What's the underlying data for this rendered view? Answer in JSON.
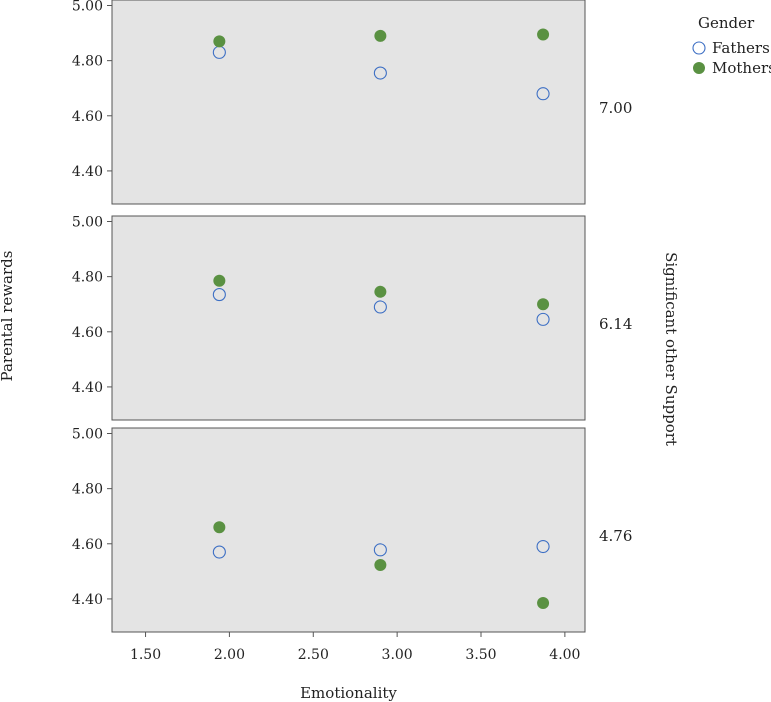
{
  "chart_data": {
    "type": "scatter",
    "xlabel": "Emotionality",
    "ylabel": "Parental rewards",
    "facet_label": "Significant other Support",
    "xlim": [
      1.3,
      4.12
    ],
    "ylim": [
      4.28,
      5.02
    ],
    "x_ticks": [
      "1.50",
      "2.00",
      "2.50",
      "3.00",
      "3.50",
      "4.00"
    ],
    "x_tick_values": [
      1.5,
      2.0,
      2.5,
      3.0,
      3.5,
      4.0
    ],
    "y_ticks": [
      "4.40",
      "4.60",
      "4.80",
      "5.00"
    ],
    "y_tick_values": [
      4.4,
      4.6,
      4.8,
      5.0
    ],
    "legend": {
      "title": "Gender",
      "placement": "top-right",
      "entries": [
        {
          "name": "Fathers",
          "marker": "open-circle",
          "color": "#3d6fc4"
        },
        {
          "name": "Mothers",
          "marker": "filled-circle",
          "color": "#5a9142"
        }
      ]
    },
    "colors": {
      "panel_bg": "#e4e4e4",
      "panel_border": "#555555"
    },
    "panels": [
      {
        "label": "7.00",
        "series": [
          {
            "name": "Fathers",
            "x": [
              1.94,
              2.9,
              3.87
            ],
            "y": [
              4.83,
              4.755,
              4.68
            ]
          },
          {
            "name": "Mothers",
            "x": [
              1.94,
              2.9,
              3.87
            ],
            "y": [
              4.87,
              4.89,
              4.895
            ]
          }
        ]
      },
      {
        "label": "6.14",
        "series": [
          {
            "name": "Fathers",
            "x": [
              1.94,
              2.9,
              3.87
            ],
            "y": [
              4.735,
              4.69,
              4.645
            ]
          },
          {
            "name": "Mothers",
            "x": [
              1.94,
              2.9,
              3.87
            ],
            "y": [
              4.785,
              4.745,
              4.7
            ]
          }
        ]
      },
      {
        "label": "4.76",
        "series": [
          {
            "name": "Fathers",
            "x": [
              1.94,
              2.9,
              3.87
            ],
            "y": [
              4.57,
              4.578,
              4.59
            ]
          },
          {
            "name": "Mothers",
            "x": [
              1.94,
              2.9,
              3.87
            ],
            "y": [
              4.66,
              4.523,
              4.385
            ]
          }
        ]
      }
    ]
  }
}
